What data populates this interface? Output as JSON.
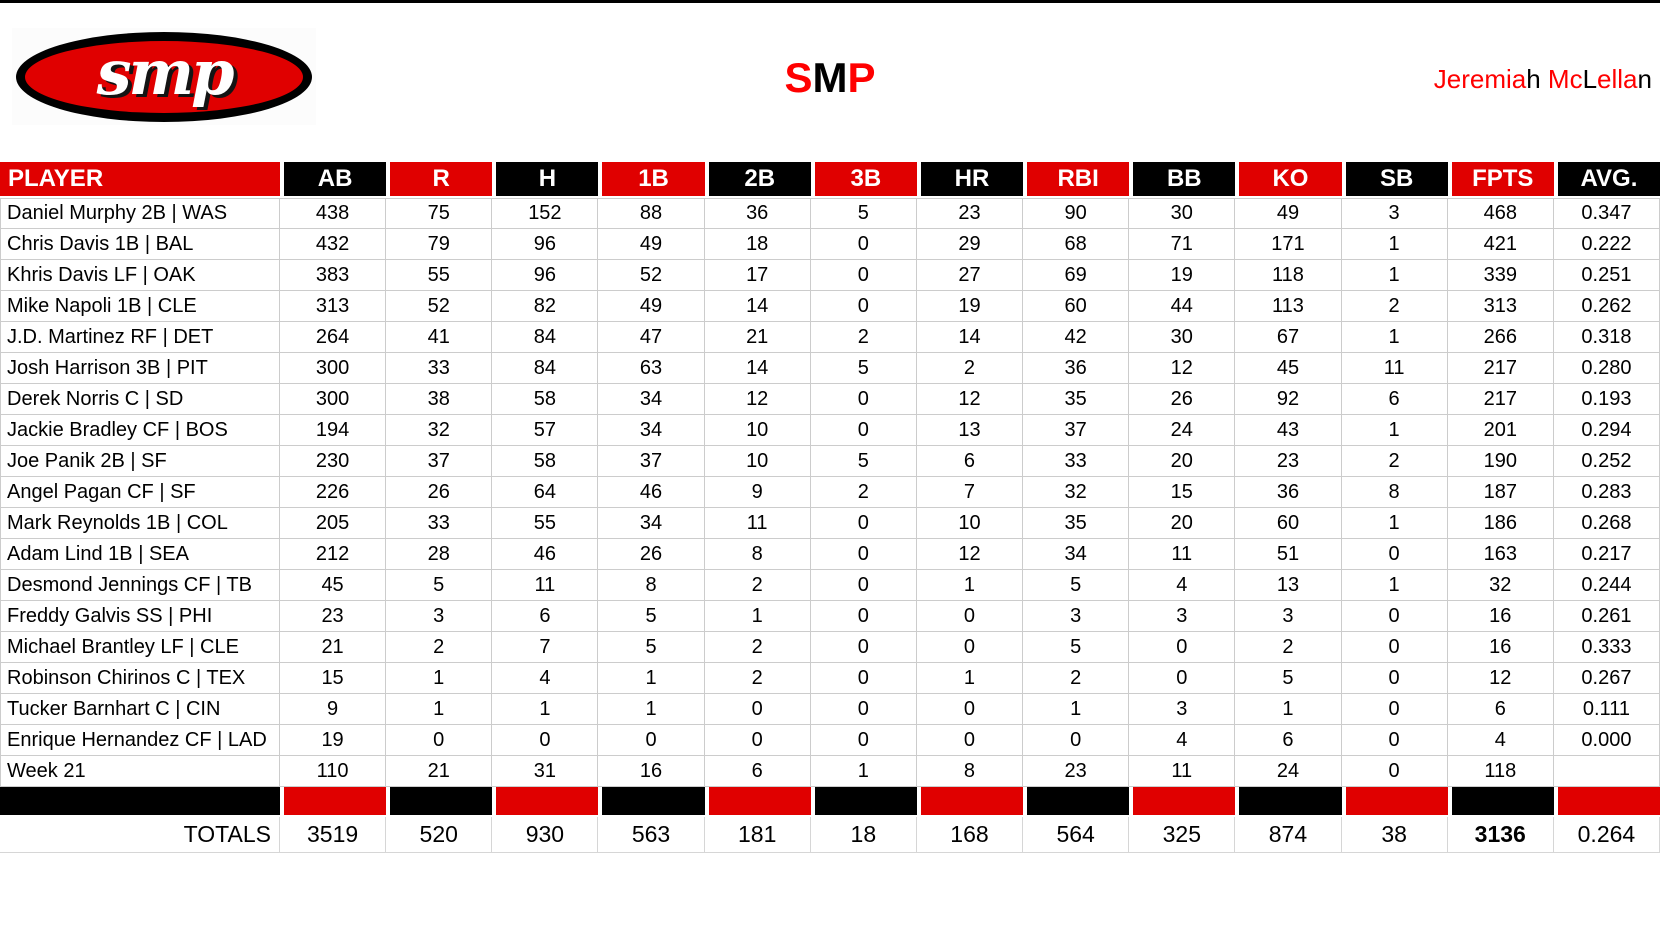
{
  "colors": {
    "table_red": "#E00000",
    "black": "#000000",
    "accent_red": "#FF0000",
    "gridline": "#CCCCCC",
    "white": "#FFFFFF"
  },
  "logo": {
    "text": "smp"
  },
  "title": {
    "segments": [
      {
        "text": "S",
        "color": "#FF0000"
      },
      {
        "text": "M",
        "color": "#000000"
      },
      {
        "text": "P",
        "color": "#FF0000"
      }
    ]
  },
  "owner": {
    "segments": [
      {
        "text": "Jeremia",
        "color": "#FF0000"
      },
      {
        "text": "h",
        "color": "#000000"
      },
      {
        "text": " Mc",
        "color": "#FF0000"
      },
      {
        "text": "L",
        "color": "#000000"
      },
      {
        "text": "ella",
        "color": "#FF0000"
      },
      {
        "text": "n",
        "color": "#000000"
      }
    ]
  },
  "table": {
    "columns": [
      {
        "label": "PLAYER",
        "header_bg": "#E00000",
        "stripe_bg": "#000000"
      },
      {
        "label": "AB",
        "header_bg": "#000000",
        "stripe_bg": "#E00000"
      },
      {
        "label": "R",
        "header_bg": "#E00000",
        "stripe_bg": "#000000"
      },
      {
        "label": "H",
        "header_bg": "#000000",
        "stripe_bg": "#E00000"
      },
      {
        "label": "1B",
        "header_bg": "#E00000",
        "stripe_bg": "#000000"
      },
      {
        "label": "2B",
        "header_bg": "#000000",
        "stripe_bg": "#E00000"
      },
      {
        "label": "3B",
        "header_bg": "#E00000",
        "stripe_bg": "#000000"
      },
      {
        "label": "HR",
        "header_bg": "#000000",
        "stripe_bg": "#E00000"
      },
      {
        "label": "RBI",
        "header_bg": "#E00000",
        "stripe_bg": "#000000"
      },
      {
        "label": "BB",
        "header_bg": "#000000",
        "stripe_bg": "#E00000"
      },
      {
        "label": "KO",
        "header_bg": "#E00000",
        "stripe_bg": "#000000"
      },
      {
        "label": "SB",
        "header_bg": "#000000",
        "stripe_bg": "#E00000"
      },
      {
        "label": "FPTS",
        "header_bg": "#E00000",
        "stripe_bg": "#000000"
      },
      {
        "label": "AVG.",
        "header_bg": "#000000",
        "stripe_bg": "#E00000"
      }
    ],
    "rows": [
      {
        "player": "Daniel Murphy 2B | WAS",
        "values": [
          "438",
          "75",
          "152",
          "88",
          "36",
          "5",
          "23",
          "90",
          "30",
          "49",
          "3",
          "468",
          "0.347"
        ]
      },
      {
        "player": "Chris Davis 1B | BAL",
        "values": [
          "432",
          "79",
          "96",
          "49",
          "18",
          "0",
          "29",
          "68",
          "71",
          "171",
          "1",
          "421",
          "0.222"
        ]
      },
      {
        "player": "Khris Davis LF | OAK",
        "values": [
          "383",
          "55",
          "96",
          "52",
          "17",
          "0",
          "27",
          "69",
          "19",
          "118",
          "1",
          "339",
          "0.251"
        ]
      },
      {
        "player": "Mike Napoli 1B | CLE",
        "values": [
          "313",
          "52",
          "82",
          "49",
          "14",
          "0",
          "19",
          "60",
          "44",
          "113",
          "2",
          "313",
          "0.262"
        ]
      },
      {
        "player": "J.D. Martinez RF | DET",
        "values": [
          "264",
          "41",
          "84",
          "47",
          "21",
          "2",
          "14",
          "42",
          "30",
          "67",
          "1",
          "266",
          "0.318"
        ]
      },
      {
        "player": "Josh Harrison 3B | PIT",
        "values": [
          "300",
          "33",
          "84",
          "63",
          "14",
          "5",
          "2",
          "36",
          "12",
          "45",
          "11",
          "217",
          "0.280"
        ]
      },
      {
        "player": "Derek Norris C | SD",
        "values": [
          "300",
          "38",
          "58",
          "34",
          "12",
          "0",
          "12",
          "35",
          "26",
          "92",
          "6",
          "217",
          "0.193"
        ]
      },
      {
        "player": "Jackie Bradley CF | BOS",
        "values": [
          "194",
          "32",
          "57",
          "34",
          "10",
          "0",
          "13",
          "37",
          "24",
          "43",
          "1",
          "201",
          "0.294"
        ]
      },
      {
        "player": "Joe Panik 2B | SF",
        "values": [
          "230",
          "37",
          "58",
          "37",
          "10",
          "5",
          "6",
          "33",
          "20",
          "23",
          "2",
          "190",
          "0.252"
        ]
      },
      {
        "player": "Angel Pagan CF | SF",
        "values": [
          "226",
          "26",
          "64",
          "46",
          "9",
          "2",
          "7",
          "32",
          "15",
          "36",
          "8",
          "187",
          "0.283"
        ]
      },
      {
        "player": "Mark Reynolds 1B | COL",
        "values": [
          "205",
          "33",
          "55",
          "34",
          "11",
          "0",
          "10",
          "35",
          "20",
          "60",
          "1",
          "186",
          "0.268"
        ]
      },
      {
        "player": "Adam Lind 1B | SEA",
        "values": [
          "212",
          "28",
          "46",
          "26",
          "8",
          "0",
          "12",
          "34",
          "11",
          "51",
          "0",
          "163",
          "0.217"
        ]
      },
      {
        "player": "Desmond Jennings CF | TB",
        "values": [
          "45",
          "5",
          "11",
          "8",
          "2",
          "0",
          "1",
          "5",
          "4",
          "13",
          "1",
          "32",
          "0.244"
        ]
      },
      {
        "player": "Freddy Galvis SS | PHI",
        "values": [
          "23",
          "3",
          "6",
          "5",
          "1",
          "0",
          "0",
          "3",
          "3",
          "3",
          "0",
          "16",
          "0.261"
        ]
      },
      {
        "player": "Michael Brantley LF | CLE",
        "values": [
          "21",
          "2",
          "7",
          "5",
          "2",
          "0",
          "0",
          "5",
          "0",
          "2",
          "0",
          "16",
          "0.333"
        ]
      },
      {
        "player": "Robinson Chirinos C | TEX",
        "values": [
          "15",
          "1",
          "4",
          "1",
          "2",
          "0",
          "1",
          "2",
          "0",
          "5",
          "0",
          "12",
          "0.267"
        ]
      },
      {
        "player": "Tucker Barnhart C | CIN",
        "values": [
          "9",
          "1",
          "1",
          "1",
          "0",
          "0",
          "0",
          "1",
          "3",
          "1",
          "0",
          "6",
          "0.111"
        ]
      },
      {
        "player": "Enrique Hernandez CF | LAD",
        "values": [
          "19",
          "0",
          "0",
          "0",
          "0",
          "0",
          "0",
          "0",
          "4",
          "6",
          "0",
          "4",
          "0.000"
        ]
      },
      {
        "player": "Week 21",
        "values": [
          "110",
          "21",
          "31",
          "16",
          "6",
          "1",
          "8",
          "23",
          "11",
          "24",
          "0",
          "118",
          ""
        ]
      }
    ],
    "totals": {
      "label": "TOTALS",
      "values": [
        "3519",
        "520",
        "930",
        "563",
        "181",
        "18",
        "168",
        "564",
        "325",
        "874",
        "38",
        "3136",
        "0.264"
      ],
      "bold_index": 11
    }
  }
}
